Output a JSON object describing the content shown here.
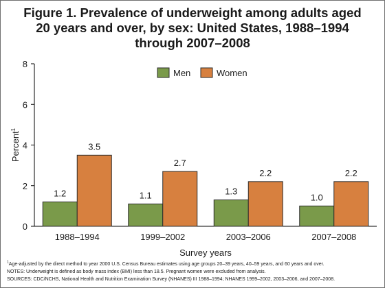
{
  "title_lines": [
    "Figure 1. Prevalence of underweight among adults aged",
    "20 years and over, by sex: United States, 1988–1994",
    "through 2007–2008"
  ],
  "chart_data": {
    "type": "bar",
    "title": "Figure 1. Prevalence of underweight among adults aged 20 years and over, by sex: United States, 1988–1994 through 2007–2008",
    "categories": [
      "1988–1994",
      "1999–2002",
      "2003–2006",
      "2007–2008"
    ],
    "series": [
      {
        "name": "Men",
        "values": [
          1.2,
          1.1,
          1.3,
          1.0
        ],
        "labels": [
          "1.2",
          "1.1",
          "1.3",
          "1.0"
        ],
        "color": "#7a9a4a"
      },
      {
        "name": "Women",
        "values": [
          3.5,
          2.7,
          2.2,
          2.2
        ],
        "labels": [
          "3.5",
          "2.7",
          "2.2",
          "2.2"
        ],
        "color": "#d7803f"
      }
    ],
    "xlabel": "Survey years",
    "ylabel": "Percent",
    "ylabel_sup": "1",
    "ylim": [
      0,
      8
    ],
    "yticks": [
      "0",
      "2",
      "4",
      "6",
      "8"
    ],
    "grid": false,
    "legend": "top-center"
  },
  "footnotes": {
    "age_adjusted_sup": "1",
    "age_adjusted": "Age-adjusted by the direct method to year 2000 U.S. Census Bureau estimates using age groups 20–39 years, 40–59 years, and 60 years and over.",
    "notes": "NOTES: Underweight is defined as body mass index (BMI) less than 18.5. Pregnant women were excluded from analysis.",
    "sources": "SOURCES: CDC/NCHS, National Health and Nutrition Examination Survey (NHANES) III 1988–1994; NHANES 1999–2002, 2003–2006, and 2007–2008."
  }
}
